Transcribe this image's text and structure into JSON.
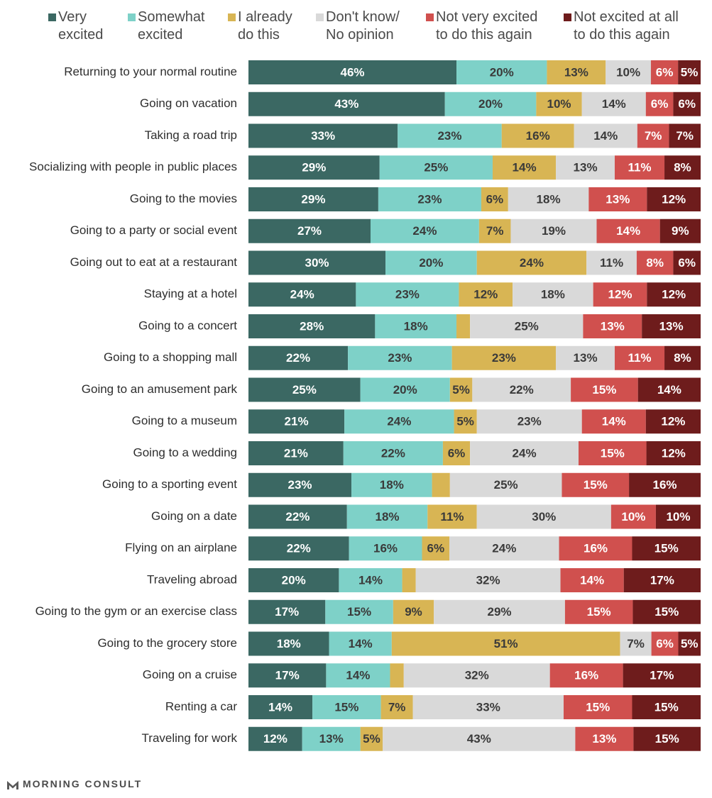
{
  "chart_data": {
    "type": "bar",
    "stacked": true,
    "orientation": "horizontal",
    "value_unit": "%",
    "legend_position": "top",
    "series": [
      {
        "name": "Very\nexcited",
        "color": "#3b6863",
        "text_color": "#ffffff"
      },
      {
        "name": "Somewhat\nexcited",
        "color": "#7ed1c8",
        "text_color": "#3a3a3a"
      },
      {
        "name": "I already\ndo this",
        "color": "#d8b554",
        "text_color": "#3a3a3a"
      },
      {
        "name": "Don't know/\nNo opinion",
        "color": "#d9d9d9",
        "text_color": "#3a3a3a"
      },
      {
        "name": "Not very excited\nto do this again",
        "color": "#d0504e",
        "text_color": "#ffffff"
      },
      {
        "name": "Not excited at all\nto do this again",
        "color": "#6e1c1c",
        "text_color": "#ffffff"
      }
    ],
    "rows": [
      {
        "label": "Returning to your normal routine",
        "values": [
          46,
          20,
          13,
          10,
          6,
          5
        ]
      },
      {
        "label": "Going on vacation",
        "values": [
          43,
          20,
          10,
          14,
          6,
          6
        ]
      },
      {
        "label": "Taking a road trip",
        "values": [
          33,
          23,
          16,
          14,
          7,
          7
        ]
      },
      {
        "label": "Socializing with people in public places",
        "values": [
          29,
          25,
          14,
          13,
          11,
          8
        ]
      },
      {
        "label": "Going to the movies",
        "values": [
          29,
          23,
          6,
          18,
          13,
          12
        ]
      },
      {
        "label": "Going to a party or social event",
        "values": [
          27,
          24,
          7,
          19,
          14,
          9
        ]
      },
      {
        "label": "Going out to eat at a restaurant",
        "values": [
          30,
          20,
          24,
          11,
          8,
          6
        ]
      },
      {
        "label": "Staying at a hotel",
        "values": [
          24,
          23,
          12,
          18,
          12,
          12
        ]
      },
      {
        "label": "Going to a concert",
        "values": [
          28,
          18,
          3,
          25,
          13,
          13
        ],
        "hidden_labels": [
          2
        ]
      },
      {
        "label": "Going to a shopping mall",
        "values": [
          22,
          23,
          23,
          13,
          11,
          8
        ]
      },
      {
        "label": "Going to an amusement park",
        "values": [
          25,
          20,
          5,
          22,
          15,
          14
        ]
      },
      {
        "label": "Going to a museum",
        "values": [
          21,
          24,
          5,
          23,
          14,
          12
        ]
      },
      {
        "label": "Going to a wedding",
        "values": [
          21,
          22,
          6,
          24,
          15,
          12
        ]
      },
      {
        "label": "Going to a sporting event",
        "values": [
          23,
          18,
          4,
          25,
          15,
          16
        ],
        "hidden_labels": [
          2
        ]
      },
      {
        "label": "Going on a date",
        "values": [
          22,
          18,
          11,
          30,
          10,
          10
        ]
      },
      {
        "label": "Flying on an airplane",
        "values": [
          22,
          16,
          6,
          24,
          16,
          15
        ]
      },
      {
        "label": "Traveling abroad",
        "values": [
          20,
          14,
          3,
          32,
          14,
          17
        ],
        "hidden_labels": [
          2
        ]
      },
      {
        "label": "Going to the gym or an exercise class",
        "values": [
          17,
          15,
          9,
          29,
          15,
          15
        ]
      },
      {
        "label": "Going to the grocery store",
        "values": [
          18,
          14,
          51,
          7,
          6,
          5
        ]
      },
      {
        "label": "Going on a cruise",
        "values": [
          17,
          14,
          3,
          32,
          16,
          17
        ],
        "hidden_labels": [
          2
        ]
      },
      {
        "label": "Renting a car",
        "values": [
          14,
          15,
          7,
          33,
          15,
          15
        ]
      },
      {
        "label": "Traveling for work",
        "values": [
          12,
          13,
          5,
          43,
          13,
          15
        ]
      }
    ]
  },
  "footer": {
    "brand": "MORNING CONSULT",
    "logo_icon": "morning-consult-logo-icon"
  }
}
